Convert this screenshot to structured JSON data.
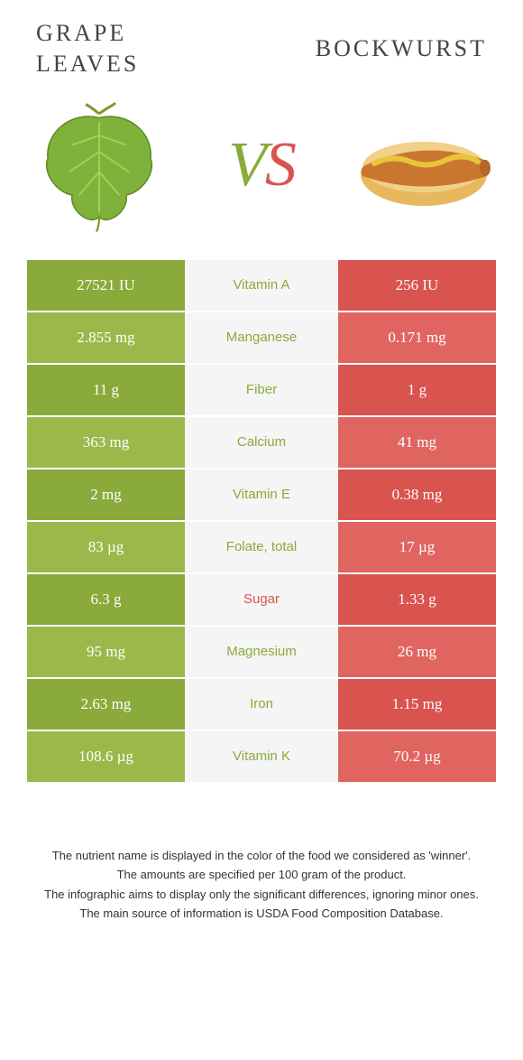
{
  "colors": {
    "left_shade_a": "#8aaa3b",
    "left_shade_b": "#9bb84a",
    "right_shade_a": "#d9534f",
    "right_shade_b": "#e06561",
    "mid_bg": "#f5f5f5",
    "nutrient_green": "#8aaa3b",
    "nutrient_red": "#d9534f",
    "text_dark": "#444444"
  },
  "header": {
    "left_title": "GRAPE\nLEAVES",
    "right_title": "BOCKWURST",
    "vs_v": "V",
    "vs_s": "S"
  },
  "rows": [
    {
      "left": "27521 IU",
      "nutrient": "Vitamin A",
      "right": "256 IU",
      "winner": "left"
    },
    {
      "left": "2.855 mg",
      "nutrient": "Manganese",
      "right": "0.171 mg",
      "winner": "left"
    },
    {
      "left": "11 g",
      "nutrient": "Fiber",
      "right": "1 g",
      "winner": "left"
    },
    {
      "left": "363 mg",
      "nutrient": "Calcium",
      "right": "41 mg",
      "winner": "left"
    },
    {
      "left": "2 mg",
      "nutrient": "Vitamin E",
      "right": "0.38 mg",
      "winner": "left"
    },
    {
      "left": "83 µg",
      "nutrient": "Folate, total",
      "right": "17 µg",
      "winner": "left"
    },
    {
      "left": "6.3 g",
      "nutrient": "Sugar",
      "right": "1.33 g",
      "winner": "right"
    },
    {
      "left": "95 mg",
      "nutrient": "Magnesium",
      "right": "26 mg",
      "winner": "left"
    },
    {
      "left": "2.63 mg",
      "nutrient": "Iron",
      "right": "1.15 mg",
      "winner": "left"
    },
    {
      "left": "108.6 µg",
      "nutrient": "Vitamin K",
      "right": "70.2 µg",
      "winner": "left"
    }
  ],
  "footnotes": [
    "The nutrient name is displayed in the color of the food we considered as 'winner'.",
    "The amounts are specified per 100 gram of the product.",
    "The infographic aims to display only the significant differences, ignoring minor ones.",
    "The main source of information is USDA Food Composition Database."
  ]
}
